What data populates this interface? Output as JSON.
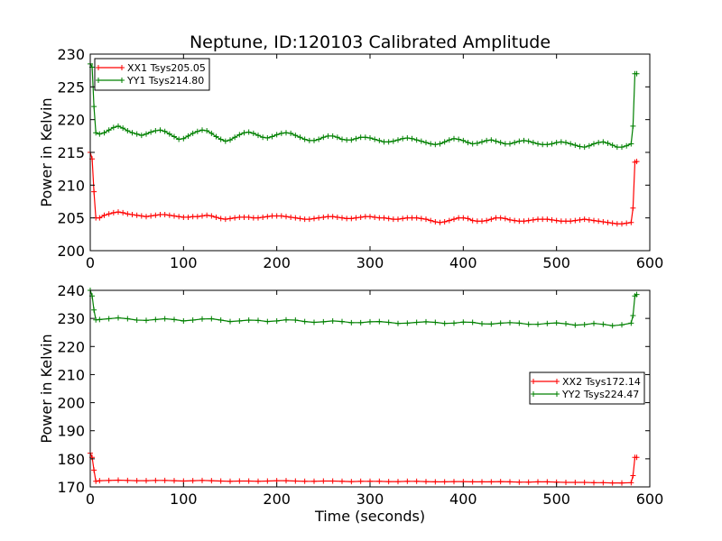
{
  "figure": {
    "title": "Neptune, ID:120103 Calibrated Amplitude"
  },
  "chart_data": [
    {
      "type": "line",
      "title": "Neptune, ID:120103 Calibrated Amplitude",
      "xlabel": "",
      "ylabel": "Power in Kelvin",
      "xlim": [
        0,
        600
      ],
      "ylim": [
        200,
        230
      ],
      "xticks": [
        0,
        100,
        200,
        300,
        400,
        500,
        600
      ],
      "yticks": [
        200,
        205,
        210,
        215,
        220,
        225,
        230
      ],
      "grid": false,
      "legend": "top-left",
      "series": [
        {
          "name": "XX1 Tsys205.05",
          "color": "#ff0000",
          "marker": "plus",
          "x": [
            0,
            2,
            4,
            6,
            10,
            15,
            20,
            25,
            30,
            35,
            40,
            45,
            50,
            55,
            60,
            65,
            70,
            75,
            80,
            85,
            90,
            95,
            100,
            105,
            110,
            115,
            120,
            125,
            130,
            135,
            140,
            145,
            150,
            155,
            160,
            165,
            170,
            175,
            180,
            185,
            190,
            195,
            200,
            205,
            210,
            215,
            220,
            225,
            230,
            235,
            240,
            245,
            250,
            255,
            260,
            265,
            270,
            275,
            280,
            285,
            290,
            295,
            300,
            305,
            310,
            315,
            320,
            325,
            330,
            335,
            340,
            345,
            350,
            355,
            360,
            365,
            370,
            375,
            380,
            385,
            390,
            395,
            400,
            405,
            410,
            415,
            420,
            425,
            430,
            435,
            440,
            445,
            450,
            455,
            460,
            465,
            470,
            475,
            480,
            485,
            490,
            495,
            500,
            505,
            510,
            515,
            520,
            525,
            530,
            535,
            540,
            545,
            550,
            555,
            560,
            565,
            570,
            575,
            580,
            582,
            584,
            586
          ],
          "values": [
            215,
            214,
            209,
            205,
            205,
            205.4,
            205.6,
            205.8,
            205.9,
            205.8,
            205.6,
            205.5,
            205.4,
            205.3,
            205.2,
            205.3,
            205.4,
            205.5,
            205.5,
            205.4,
            205.3,
            205.2,
            205.1,
            205.1,
            205.2,
            205.2,
            205.3,
            205.4,
            205.3,
            205.1,
            204.9,
            204.8,
            204.9,
            205.0,
            205.1,
            205.1,
            205.1,
            205.0,
            205.0,
            205.1,
            205.2,
            205.3,
            205.3,
            205.3,
            205.2,
            205.1,
            205.0,
            204.9,
            204.8,
            204.8,
            204.9,
            205.0,
            205.1,
            205.2,
            205.2,
            205.1,
            205.0,
            204.9,
            204.9,
            205.0,
            205.1,
            205.2,
            205.2,
            205.1,
            205.0,
            205.0,
            204.9,
            204.8,
            204.8,
            204.9,
            205.0,
            205.0,
            205.0,
            204.9,
            204.8,
            204.6,
            204.4,
            204.3,
            204.4,
            204.6,
            204.8,
            205.0,
            205.0,
            204.9,
            204.6,
            204.5,
            204.5,
            204.6,
            204.8,
            205.0,
            205.0,
            204.9,
            204.7,
            204.6,
            204.5,
            204.5,
            204.6,
            204.7,
            204.8,
            204.8,
            204.8,
            204.7,
            204.6,
            204.5,
            204.5,
            204.5,
            204.6,
            204.7,
            204.8,
            204.7,
            204.6,
            204.5,
            204.4,
            204.3,
            204.2,
            204.1,
            204.1,
            204.2,
            204.3,
            206.5,
            213.5,
            213.6
          ]
        },
        {
          "name": "YY1 Tsys214.80",
          "color": "#008000",
          "marker": "plus",
          "x": [
            0,
            2,
            4,
            6,
            10,
            15,
            20,
            25,
            30,
            35,
            40,
            45,
            50,
            55,
            60,
            65,
            70,
            75,
            80,
            85,
            90,
            95,
            100,
            105,
            110,
            115,
            120,
            125,
            130,
            135,
            140,
            145,
            150,
            155,
            160,
            165,
            170,
            175,
            180,
            185,
            190,
            195,
            200,
            205,
            210,
            215,
            220,
            225,
            230,
            235,
            240,
            245,
            250,
            255,
            260,
            265,
            270,
            275,
            280,
            285,
            290,
            295,
            300,
            305,
            310,
            315,
            320,
            325,
            330,
            335,
            340,
            345,
            350,
            355,
            360,
            365,
            370,
            375,
            380,
            385,
            390,
            395,
            400,
            405,
            410,
            415,
            420,
            425,
            430,
            435,
            440,
            445,
            450,
            455,
            460,
            465,
            470,
            475,
            480,
            485,
            490,
            495,
            500,
            505,
            510,
            515,
            520,
            525,
            530,
            535,
            540,
            545,
            550,
            555,
            560,
            565,
            570,
            575,
            580,
            582,
            584,
            586
          ],
          "values": [
            228.5,
            228,
            222,
            218,
            217.8,
            218.0,
            218.4,
            218.8,
            219.0,
            218.7,
            218.3,
            218.0,
            217.8,
            217.6,
            217.8,
            218.1,
            218.3,
            218.4,
            218.2,
            217.8,
            217.4,
            217.0,
            217.1,
            217.5,
            217.9,
            218.2,
            218.4,
            218.3,
            217.9,
            217.4,
            217.0,
            216.7,
            216.9,
            217.3,
            217.7,
            218.0,
            218.1,
            217.9,
            217.6,
            217.3,
            217.2,
            217.4,
            217.7,
            217.9,
            218.0,
            217.9,
            217.6,
            217.3,
            217.0,
            216.8,
            216.8,
            217.0,
            217.3,
            217.5,
            217.5,
            217.3,
            217.0,
            216.9,
            216.9,
            217.1,
            217.3,
            217.3,
            217.2,
            217.0,
            216.8,
            216.6,
            216.6,
            216.7,
            216.9,
            217.1,
            217.2,
            217.1,
            216.9,
            216.7,
            216.5,
            216.3,
            216.2,
            216.3,
            216.6,
            216.9,
            217.1,
            217.0,
            216.8,
            216.5,
            216.3,
            216.4,
            216.6,
            216.8,
            216.9,
            216.7,
            216.5,
            216.3,
            216.3,
            216.5,
            216.7,
            216.8,
            216.7,
            216.5,
            216.3,
            216.2,
            216.2,
            216.3,
            216.5,
            216.6,
            216.5,
            216.3,
            216.1,
            215.9,
            215.8,
            216.0,
            216.3,
            216.5,
            216.6,
            216.4,
            216.1,
            215.8,
            215.8,
            216.0,
            216.3,
            219,
            227,
            227
          ]
        }
      ]
    },
    {
      "type": "line",
      "title": "",
      "xlabel": "Time (seconds)",
      "ylabel": "Power in Kelvin",
      "xlim": [
        0,
        600
      ],
      "ylim": [
        170,
        240
      ],
      "xticks": [
        0,
        100,
        200,
        300,
        400,
        500,
        600
      ],
      "yticks": [
        170,
        180,
        190,
        200,
        210,
        220,
        230,
        240
      ],
      "grid": false,
      "legend": "center-right",
      "series": [
        {
          "name": "XX2 Tsys172.14",
          "color": "#ff0000",
          "marker": "plus",
          "x": [
            0,
            2,
            4,
            6,
            10,
            20,
            30,
            40,
            50,
            60,
            70,
            80,
            90,
            100,
            110,
            120,
            130,
            140,
            150,
            160,
            170,
            180,
            190,
            200,
            210,
            220,
            230,
            240,
            250,
            260,
            270,
            280,
            290,
            300,
            310,
            320,
            330,
            340,
            350,
            360,
            370,
            380,
            390,
            400,
            410,
            420,
            430,
            440,
            450,
            460,
            470,
            480,
            490,
            500,
            510,
            520,
            530,
            540,
            550,
            560,
            570,
            580,
            582,
            584,
            586
          ],
          "values": [
            182,
            180.5,
            176,
            172,
            172.2,
            172.3,
            172.4,
            172.3,
            172.2,
            172.2,
            172.3,
            172.3,
            172.2,
            172.1,
            172.2,
            172.3,
            172.2,
            172.1,
            172.0,
            172.1,
            172.1,
            172.0,
            172.1,
            172.2,
            172.2,
            172.1,
            172.0,
            172.0,
            172.1,
            172.1,
            172.0,
            171.9,
            172.0,
            172.0,
            172.0,
            171.9,
            171.9,
            172.0,
            172.0,
            171.9,
            171.8,
            171.8,
            171.9,
            171.9,
            171.8,
            171.8,
            171.8,
            171.9,
            171.8,
            171.7,
            171.7,
            171.8,
            171.8,
            171.7,
            171.6,
            171.6,
            171.6,
            171.5,
            171.5,
            171.4,
            171.4,
            171.5,
            174,
            180.5,
            180.5
          ]
        },
        {
          "name": "YY2 Tsys224.47",
          "color": "#008000",
          "marker": "plus",
          "x": [
            0,
            2,
            4,
            6,
            10,
            20,
            30,
            40,
            50,
            60,
            70,
            80,
            90,
            100,
            110,
            120,
            130,
            140,
            150,
            160,
            170,
            180,
            190,
            200,
            210,
            220,
            230,
            240,
            250,
            260,
            270,
            280,
            290,
            300,
            310,
            320,
            330,
            340,
            350,
            360,
            370,
            380,
            390,
            400,
            410,
            420,
            430,
            440,
            450,
            460,
            470,
            480,
            490,
            500,
            510,
            520,
            530,
            540,
            550,
            560,
            570,
            580,
            582,
            584,
            586
          ],
          "values": [
            240,
            238,
            233,
            229.5,
            229.6,
            229.9,
            230.2,
            229.9,
            229.4,
            229.3,
            229.6,
            229.9,
            229.6,
            229.1,
            229.4,
            229.8,
            229.9,
            229.4,
            228.9,
            229.1,
            229.4,
            229.3,
            228.9,
            229.1,
            229.5,
            229.4,
            228.9,
            228.6,
            228.8,
            229.1,
            228.9,
            228.5,
            228.5,
            228.8,
            228.9,
            228.6,
            228.2,
            228.3,
            228.6,
            228.8,
            228.6,
            228.2,
            228.3,
            228.7,
            228.6,
            228.1,
            228.0,
            228.3,
            228.5,
            228.3,
            227.9,
            227.9,
            228.2,
            228.4,
            228.1,
            227.6,
            227.8,
            228.2,
            227.9,
            227.4,
            227.7,
            228.3,
            231,
            238,
            238.5
          ]
        }
      ]
    }
  ]
}
